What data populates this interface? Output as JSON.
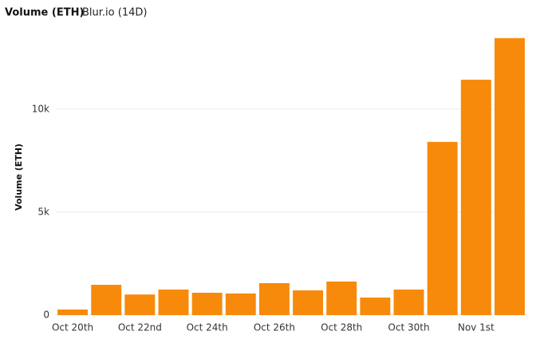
{
  "chart_data": {
    "type": "bar",
    "title": "Volume (ETH)",
    "subtitle": "Blur.io (14D)",
    "y_label": "Volume (ETH)",
    "categories": [
      "Oct 20th",
      null,
      "Oct 22nd",
      null,
      "Oct 24th",
      null,
      "Oct 26th",
      null,
      "Oct 28th",
      null,
      "Oct 30th",
      null,
      "Nov 1st",
      null
    ],
    "values": [
      270,
      1470,
      1000,
      1240,
      1085,
      1050,
      1550,
      1200,
      1630,
      850,
      1240,
      8410,
      11430,
      13450
    ],
    "color": "#f78a0b",
    "ylim": [
      0,
      13750
    ],
    "yticks": [
      0,
      {
        "value": 5000,
        "label": "5k"
      },
      {
        "value": 10000,
        "label": "10k"
      }
    ],
    "grid": true
  }
}
